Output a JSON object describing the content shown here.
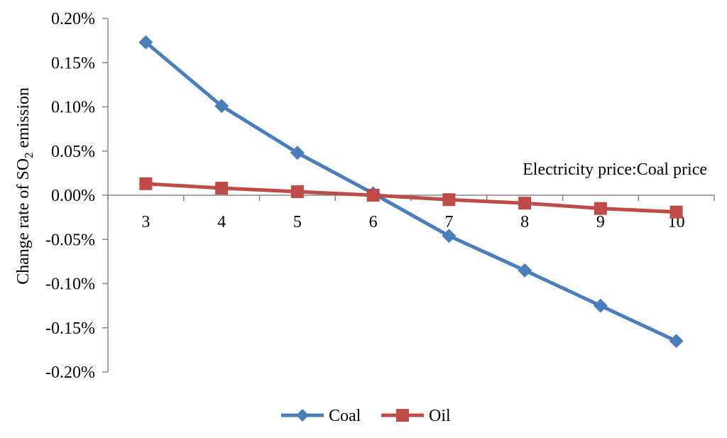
{
  "chart_data": {
    "type": "line",
    "xlabel": "Electricity price:Coal price",
    "ylabel": {
      "pre": "Change rate of  SO",
      "sub": "2",
      "post": " emission"
    },
    "categories": [
      "3",
      "4",
      "5",
      "6",
      "7",
      "8",
      "9",
      "10"
    ],
    "y_ticks": [
      "0.20%",
      "0.15%",
      "0.10%",
      "0.05%",
      "0.00%",
      "-0.05%",
      "-0.10%",
      "-0.15%",
      "-0.20%"
    ],
    "ylim": [
      -0.2,
      0.2
    ],
    "grid": false,
    "legend_position": "bottom",
    "series": [
      {
        "name": "Coal",
        "values": [
          0.173,
          0.101,
          0.048,
          0.002,
          -0.046,
          -0.085,
          -0.125,
          -0.165
        ],
        "color": "#4a7ebb",
        "marker": "diamond"
      },
      {
        "name": "Oil",
        "values": [
          0.013,
          0.008,
          0.004,
          0.0,
          -0.005,
          -0.009,
          -0.015,
          -0.019
        ],
        "color": "#be4b48",
        "marker": "square"
      }
    ]
  }
}
